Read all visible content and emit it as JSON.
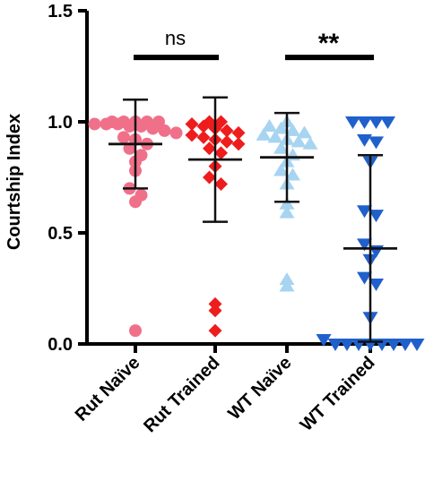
{
  "chart_data": {
    "type": "scatter",
    "ylabel": "Courtship Index",
    "xlabel": "",
    "ylim": [
      0,
      1.5
    ],
    "yticks": [
      {
        "value": 0.0,
        "label": "0.0"
      },
      {
        "value": 0.5,
        "label": "0.5"
      },
      {
        "value": 1.0,
        "label": "1.0"
      },
      {
        "value": 1.5,
        "label": "1.5"
      }
    ],
    "categories": [
      "Rut Naïve",
      "Rut Trained",
      "WT Naïve",
      "WT Trained"
    ],
    "groups": [
      {
        "category": "Rut Naïve",
        "marker": "circle",
        "color": "#f0708a",
        "mean": 0.9,
        "sd_low": 0.7,
        "sd_high": 1.1,
        "values": [
          1.0,
          1.0,
          1.0,
          1.0,
          1.0,
          0.99,
          0.99,
          0.99,
          0.98,
          0.98,
          0.97,
          0.96,
          0.95,
          0.93,
          0.92,
          0.9,
          0.88,
          0.85,
          0.82,
          0.78,
          0.7,
          0.67,
          0.64,
          0.06
        ]
      },
      {
        "category": "Rut Trained",
        "marker": "diamond",
        "color": "#ee1c1c",
        "mean": 0.83,
        "sd_low": 0.55,
        "sd_high": 1.11,
        "values": [
          1.0,
          1.0,
          0.99,
          0.98,
          0.97,
          0.96,
          0.95,
          0.94,
          0.93,
          0.92,
          0.91,
          0.9,
          0.88,
          0.86,
          0.8,
          0.75,
          0.72,
          0.18,
          0.15,
          0.06
        ]
      },
      {
        "category": "WT Naïve",
        "marker": "triangle-up",
        "color": "#a7d4f0",
        "mean": 0.84,
        "sd_low": 0.64,
        "sd_high": 1.04,
        "values": [
          1.0,
          0.98,
          0.97,
          0.96,
          0.95,
          0.94,
          0.93,
          0.92,
          0.91,
          0.9,
          0.88,
          0.85,
          0.82,
          0.78,
          0.76,
          0.72,
          0.63,
          0.59,
          0.29,
          0.26
        ]
      },
      {
        "category": "WT Trained",
        "marker": "triangle-down",
        "color": "#2060cc",
        "mean": 0.43,
        "sd_low": 0.01,
        "sd_high": 0.85,
        "values": [
          1.0,
          1.0,
          1.0,
          1.0,
          0.92,
          0.91,
          0.82,
          0.6,
          0.58,
          0.45,
          0.42,
          0.38,
          0.3,
          0.27,
          0.12,
          0.02,
          0.0,
          0.0,
          0.0,
          0.0,
          0.0,
          0.0,
          0.0,
          0.0
        ]
      }
    ],
    "annotations": [
      {
        "text": "ns",
        "from": "Rut Naïve",
        "to": "Rut Trained",
        "y": 1.29
      },
      {
        "text": "**",
        "from": "WT Naïve",
        "to": "WT Trained",
        "y": 1.29
      }
    ],
    "grid": false,
    "legend": "none"
  }
}
